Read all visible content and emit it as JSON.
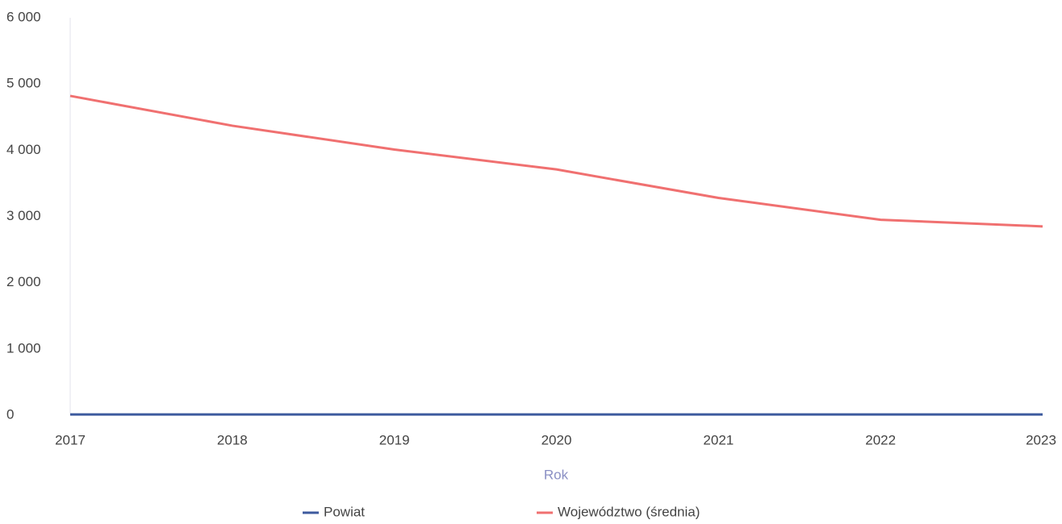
{
  "chart_data": {
    "type": "line",
    "x_label": "Rok",
    "x": [
      2017,
      2018,
      2019,
      2020,
      2021,
      2022,
      2023
    ],
    "xlim": [
      2017,
      2023
    ],
    "xticks": [
      2017,
      2018,
      2019,
      2020,
      2021,
      2022,
      2023
    ],
    "ylim": [
      0,
      6000
    ],
    "yticks": [
      0,
      {
        "value": 1000,
        "label": "1 000"
      },
      {
        "value": 2000,
        "label": "2 000"
      },
      {
        "value": 3000,
        "label": "3 000"
      },
      {
        "value": 4000,
        "label": "4 000"
      },
      {
        "value": 5000,
        "label": "5 000"
      },
      {
        "value": 6000,
        "label": "6 000"
      }
    ],
    "grid": false,
    "legend": "bottom",
    "series": [
      {
        "name": "Powiat",
        "color": "#3d5a9e",
        "values": [
          10,
          10,
          10,
          10,
          10,
          10,
          10
        ]
      },
      {
        "name": "Województwo (średnia)",
        "color": "#f07070",
        "values": [
          4820,
          4370,
          4010,
          3710,
          3280,
          2950,
          2850
        ]
      }
    ]
  }
}
